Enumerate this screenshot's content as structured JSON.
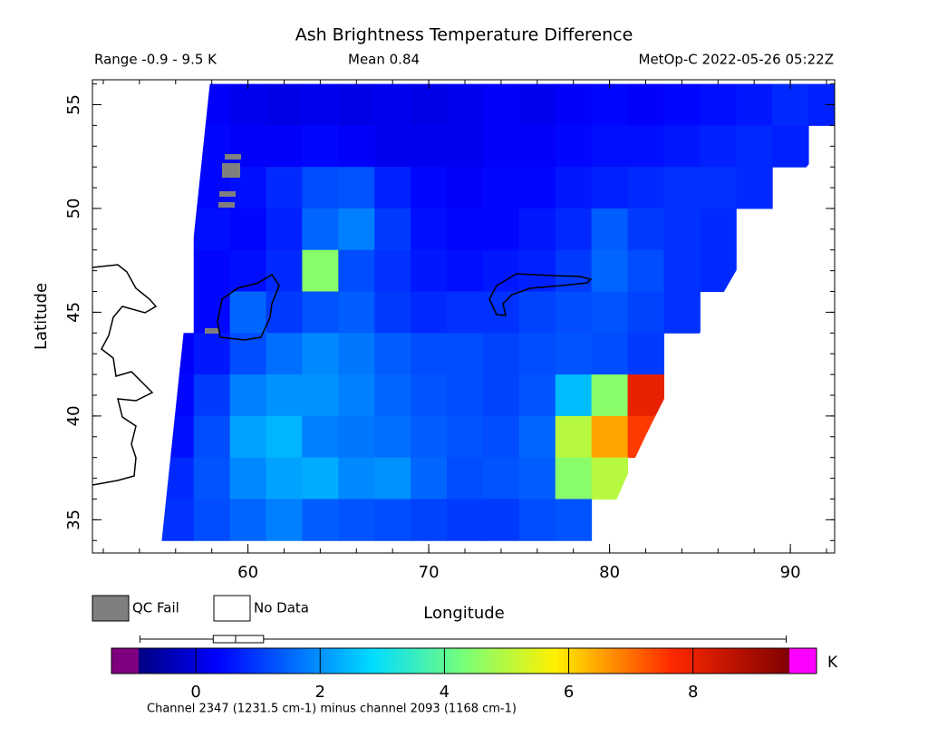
{
  "header": {
    "title": "Ash Brightness Temperature Difference",
    "range": "Range -0.9 - 9.5 K",
    "mean": "Mean 0.84",
    "satellite": "MetOp-C 2022-05-26 05:22Z"
  },
  "map": {
    "x_label": "Longitude",
    "y_label": "Latitude",
    "xlim": [
      51.4,
      92.45
    ],
    "ylim": [
      33.4,
      56.2
    ],
    "xticks": [
      60,
      70,
      80,
      90
    ],
    "yticks": [
      35,
      40,
      45,
      50,
      55
    ],
    "cell_lon": [
      56,
      58,
      60,
      62,
      64,
      66,
      68,
      70,
      72,
      74,
      76,
      78,
      80,
      82,
      84,
      86,
      88,
      90,
      92
    ],
    "cell_lat": [
      55,
      53,
      51,
      49,
      47,
      45,
      43,
      41,
      39,
      37,
      35
    ],
    "values": [
      [
        null,
        0.3,
        0.2,
        0.1,
        0.2,
        0.1,
        0.2,
        0.1,
        0.2,
        0.3,
        0.2,
        0.3,
        0.4,
        0.3,
        0.4,
        0.5,
        0.6,
        0.8,
        0.7
      ],
      [
        null,
        0.4,
        0.3,
        0.3,
        0.4,
        0.3,
        0.2,
        0.2,
        0.2,
        0.3,
        0.3,
        0.4,
        0.5,
        0.5,
        0.6,
        0.7,
        0.8,
        0.7,
        null
      ],
      [
        null,
        0.4,
        0.5,
        0.8,
        1.2,
        1.3,
        0.7,
        0.4,
        0.3,
        0.4,
        0.4,
        0.6,
        0.7,
        0.8,
        0.9,
        0.9,
        0.8,
        null,
        null
      ],
      [
        null,
        0.5,
        0.4,
        0.7,
        1.5,
        1.8,
        1.0,
        0.5,
        0.4,
        0.4,
        0.6,
        0.8,
        1.4,
        1.0,
        0.9,
        0.8,
        null,
        null,
        null
      ],
      [
        null,
        0.4,
        0.5,
        0.8,
        4.5,
        1.2,
        0.9,
        0.6,
        0.5,
        0.6,
        0.7,
        1.0,
        1.5,
        1.2,
        0.9,
        0.8,
        null,
        null,
        null
      ],
      [
        null,
        0.4,
        1.5,
        1.0,
        1.3,
        1.4,
        1.0,
        0.8,
        0.9,
        0.9,
        1.1,
        1.2,
        1.3,
        1.1,
        0.9,
        null,
        null,
        null,
        null
      ],
      [
        0.3,
        0.6,
        1.2,
        1.6,
        1.9,
        1.7,
        1.4,
        1.2,
        1.2,
        1.1,
        1.2,
        1.3,
        1.2,
        1.0,
        null,
        null,
        null,
        null,
        null
      ],
      [
        0.4,
        1.0,
        1.8,
        2.0,
        2.0,
        1.8,
        1.5,
        1.3,
        1.2,
        1.1,
        1.3,
        2.5,
        4.5,
        8.0,
        null,
        null,
        null,
        null,
        null
      ],
      [
        0.5,
        1.2,
        2.2,
        2.4,
        1.8,
        1.7,
        1.6,
        1.4,
        1.3,
        1.2,
        1.5,
        5.0,
        6.5,
        7.5,
        null,
        null,
        null,
        null,
        null
      ],
      [
        0.8,
        1.3,
        1.9,
        2.2,
        2.3,
        1.9,
        2.0,
        1.5,
        1.2,
        1.3,
        1.4,
        4.5,
        5.0,
        null,
        null,
        null,
        null,
        null,
        null
      ],
      [
        0.9,
        1.2,
        1.5,
        1.8,
        1.4,
        1.3,
        1.2,
        1.1,
        1.0,
        1.0,
        1.2,
        1.3,
        null,
        null,
        null,
        null,
        null,
        null,
        null
      ]
    ]
  },
  "legend": {
    "qc_fail": "QC Fail",
    "no_data": "No Data"
  },
  "colorbar": {
    "lim": [
      -0.92,
      9.55
    ],
    "ticks": [
      0,
      2,
      4,
      6,
      8
    ],
    "unit": "K",
    "box": {
      "min": -0.9,
      "q1": 0.28,
      "median": 0.64,
      "q3": 1.09,
      "max": 9.5
    }
  },
  "footer": "Channel 2347 (1231.5 cm-1) minus channel 2093 (1168 cm-1)"
}
